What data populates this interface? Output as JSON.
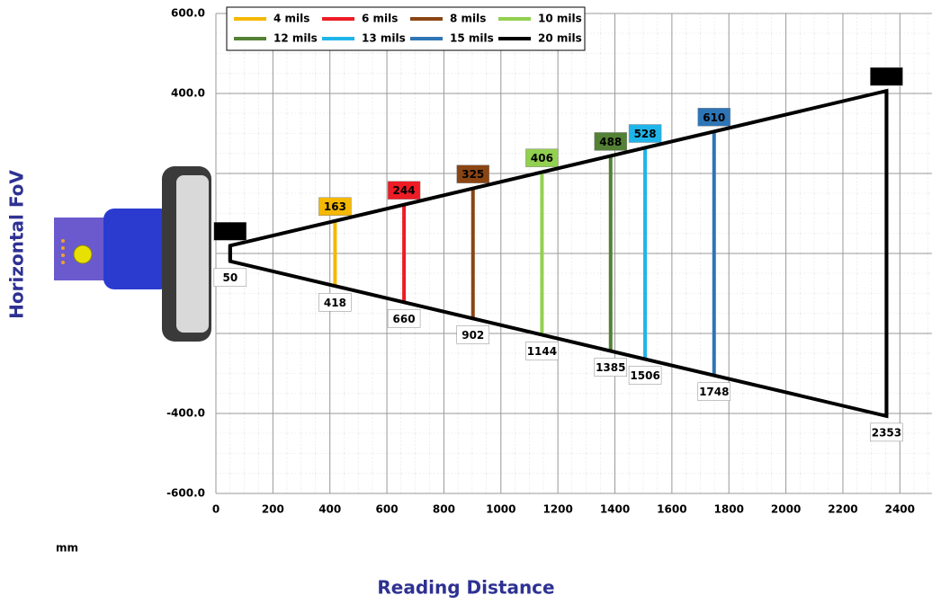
{
  "chart_data": {
    "type": "fov",
    "y_axis_title": "Horizontal FoV",
    "x_axis_title": "Reading Distance",
    "unit": "mm",
    "xlim": [
      0,
      2500
    ],
    "xticks": [
      0,
      200,
      400,
      600,
      800,
      1000,
      1200,
      1400,
      1600,
      1800,
      2000,
      2200,
      2400
    ],
    "ylim": [
      -600,
      600
    ],
    "yticks": [
      {
        "value": 600,
        "label": "600.0"
      },
      {
        "value": 400,
        "label": "400.0"
      },
      {
        "value": 200,
        "label": null
      },
      {
        "value": 0,
        "label": null
      },
      {
        "value": -200,
        "label": null
      },
      {
        "value": -400,
        "label": "-400.0"
      },
      {
        "value": -600,
        "label": "-600.0"
      }
    ],
    "grid": true,
    "series": [
      {
        "name": "4 mils",
        "color": "#f5b800",
        "distances": [
          418
        ],
        "widths": [
          163
        ]
      },
      {
        "name": "6 mils",
        "color": "#ee1c25",
        "distances": [
          660
        ],
        "widths": [
          244
        ]
      },
      {
        "name": "8 mils",
        "color": "#8b4513",
        "distances": [
          902
        ],
        "widths": [
          325
        ]
      },
      {
        "name": "10 mils",
        "color": "#92d050",
        "distances": [
          1144
        ],
        "widths": [
          406
        ]
      },
      {
        "name": "12 mils",
        "color": "#538135",
        "distances": [
          1385
        ],
        "widths": [
          488
        ]
      },
      {
        "name": "13 mils",
        "color": "#1fb5ea",
        "distances": [
          1506
        ],
        "widths": [
          528
        ]
      },
      {
        "name": "15 mils",
        "color": "#2e75b6",
        "distances": [
          1748
        ],
        "widths": [
          610
        ]
      },
      {
        "name": "20 mils",
        "color": "#000000",
        "distances": [
          50,
          2353
        ],
        "widths": [
          39,
          813
        ]
      }
    ]
  }
}
